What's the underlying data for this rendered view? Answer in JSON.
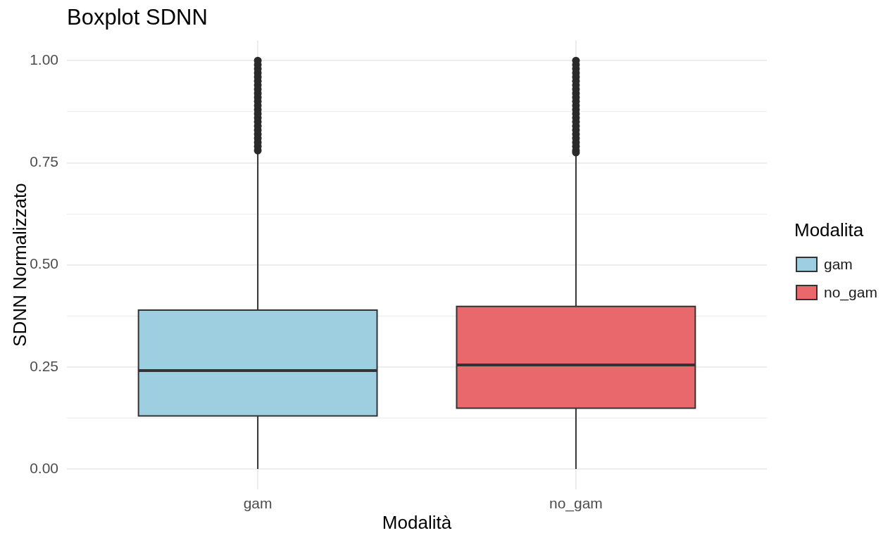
{
  "chart_data": {
    "type": "box",
    "title": "Boxplot SDNN",
    "xlabel": "Modalità",
    "ylabel": "SDNN Normalizzato",
    "legend_title": "Modalita",
    "legend": "right",
    "grid": true,
    "categories": [
      "gam",
      "no_gam"
    ],
    "series": [
      {
        "name": "gam",
        "color": "#9ecfe0",
        "boxes": [
          {
            "low": 0,
            "q1": 0.13,
            "median": 0.241,
            "q3": 0.389,
            "high": 0.775,
            "outliers": [
              0.78,
              0.79,
              0.8,
              0.81,
              0.82,
              0.83,
              0.84,
              0.85,
              0.86,
              0.87,
              0.88,
              0.89,
              0.9,
              0.91,
              0.92,
              0.93,
              0.94,
              0.95,
              0.96,
              0.97,
              0.98,
              0.99,
              1.0
            ]
          },
          null
        ]
      },
      {
        "name": "no_gam",
        "color": "#e8686c",
        "boxes": [
          null,
          {
            "low": 0,
            "q1": 0.149,
            "median": 0.255,
            "q3": 0.398,
            "high": 0.77,
            "outliers": [
              0.775,
              0.78,
              0.79,
              0.8,
              0.81,
              0.82,
              0.83,
              0.84,
              0.85,
              0.86,
              0.87,
              0.88,
              0.89,
              0.9,
              0.91,
              0.92,
              0.93,
              0.94,
              0.95,
              0.96,
              0.97,
              0.98,
              0.99,
              1.0
            ]
          }
        ]
      }
    ],
    "ylim": [
      -0.05,
      1.05
    ],
    "yticks": [
      {
        "value": 0,
        "label": "0.00"
      },
      {
        "value": 0.125,
        "label": null
      },
      {
        "value": 0.25,
        "label": "0.25"
      },
      {
        "value": 0.375,
        "label": null
      },
      {
        "value": 0.5,
        "label": "0.50"
      },
      {
        "value": 0.625,
        "label": null
      },
      {
        "value": 0.75,
        "label": "0.75"
      },
      {
        "value": 0.875,
        "label": null
      },
      {
        "value": 1,
        "label": "1.00"
      }
    ]
  }
}
